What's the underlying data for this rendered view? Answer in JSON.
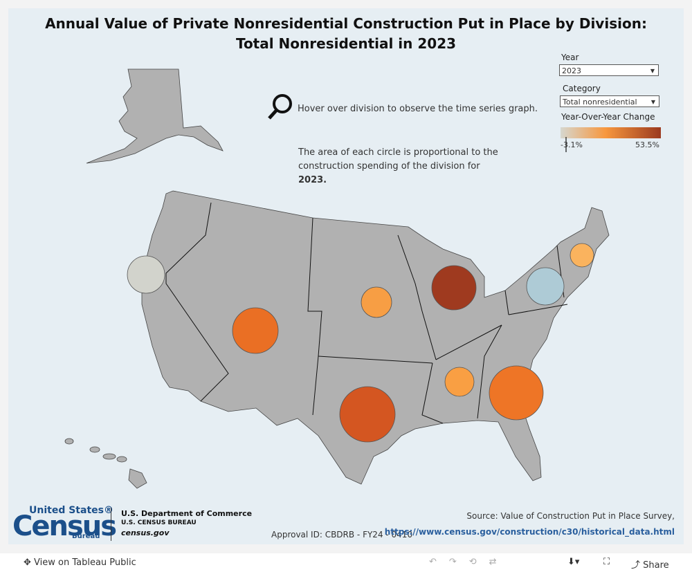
{
  "header": {
    "title_line1": "Annual Value of Private Nonresidential Construction Put in Place by Division:",
    "title_line2": "Total Nonresidential in 2023"
  },
  "filters": {
    "year_label": "Year",
    "year_value": "2023",
    "category_label": "Category",
    "category_value": "Total nonresidential"
  },
  "legend": {
    "title": "Year-Over-Year Change",
    "min_label": "-3.1%",
    "max_label": "53.5%"
  },
  "notes": {
    "hover": "Hover over division to observe the time series graph.",
    "area_text": "The area of each circle is proportional to the construction spending of the division for ",
    "area_year": "2023."
  },
  "footer": {
    "logo_top": "United States®",
    "logo_main": "Census",
    "logo_bureau": "Bureau",
    "dept": "U.S. Department of Commerce",
    "bureau": "U.S. CENSUS BUREAU",
    "site": "census.gov",
    "approval": "Approval ID: CBDRB - FY24 - 0410",
    "source": "Source: Value of Construction Put in Place Survey,",
    "link": "https://www.census.gov/construction/c30/historical_data.html"
  },
  "toolbar": {
    "view": "View on Tableau Public",
    "share": "Share"
  }
}
